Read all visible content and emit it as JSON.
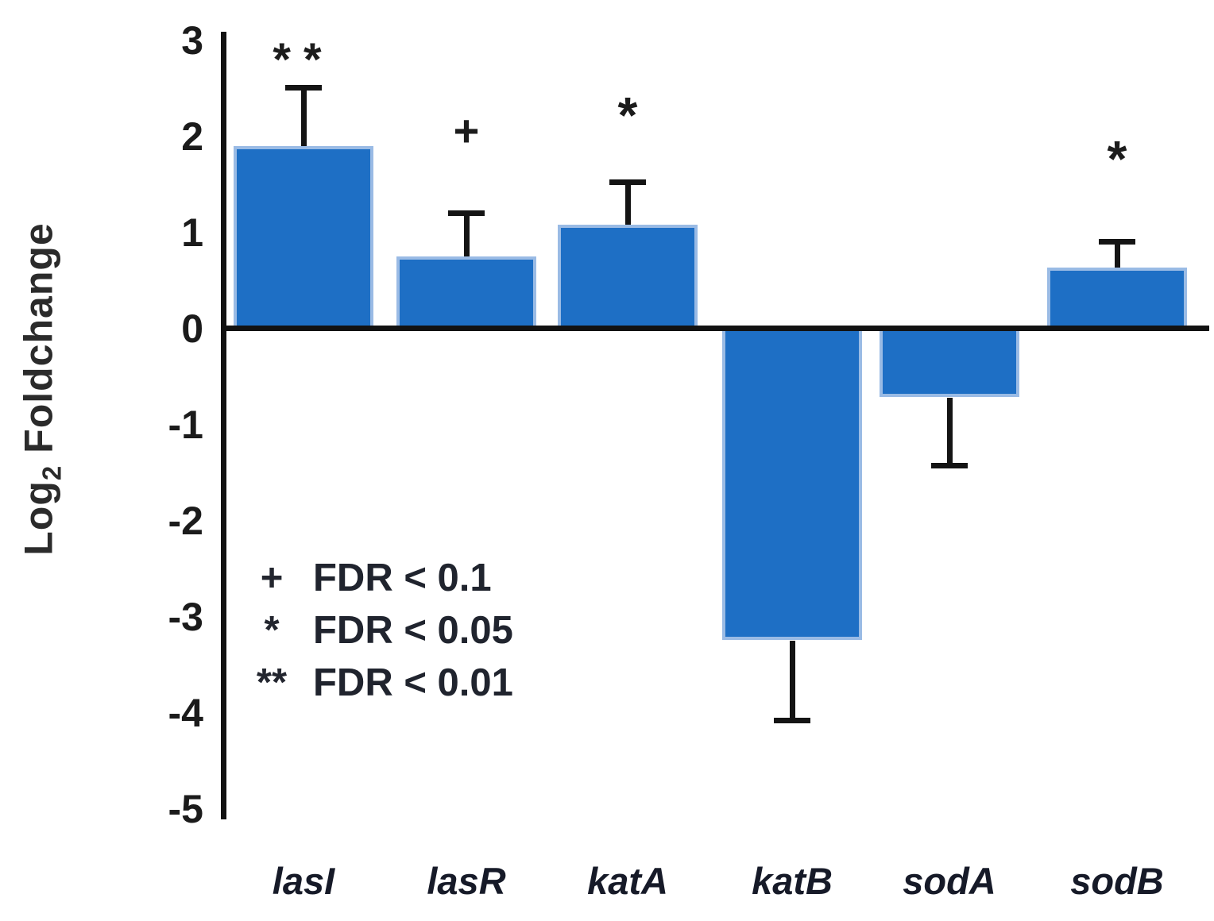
{
  "chart_data": {
    "type": "bar",
    "title": "",
    "categories": [
      "lasI",
      "lasR",
      "katA",
      "katB",
      "sodA",
      "sodB"
    ],
    "values": [
      1.9,
      0.75,
      1.08,
      -3.25,
      -0.72,
      0.63
    ],
    "error_bars": [
      0.63,
      0.48,
      0.47,
      0.86,
      0.74,
      0.3
    ],
    "significance": [
      "**",
      "+",
      "*",
      "",
      "",
      "*"
    ],
    "ylabel": "Log2 Foldchange",
    "ylabel_parts": {
      "main": "Log",
      "sub": "2",
      "rest": " Foldchange"
    },
    "xlabel": "",
    "yticks": [
      "3",
      "2",
      "1",
      "0",
      "-1",
      "-2",
      "-3",
      "-4",
      "-5"
    ],
    "ytick_values": [
      3,
      2,
      1,
      0,
      -1,
      -2,
      -3,
      -4,
      -5
    ],
    "ylim": [
      -5,
      3
    ],
    "grid": "off",
    "legend_position": "inside-lower-left",
    "legend": [
      {
        "symbol": "+",
        "label": "FDR < 0.1"
      },
      {
        "symbol": "*",
        "label": "FDR < 0.05"
      },
      {
        "symbol": "**",
        "label": "FDR < 0.01"
      }
    ],
    "colors": {
      "bar_fill": "#1e6fc5",
      "bar_border": "#9abbe5",
      "axis": "#121212",
      "text": "#1b1b1b"
    }
  }
}
